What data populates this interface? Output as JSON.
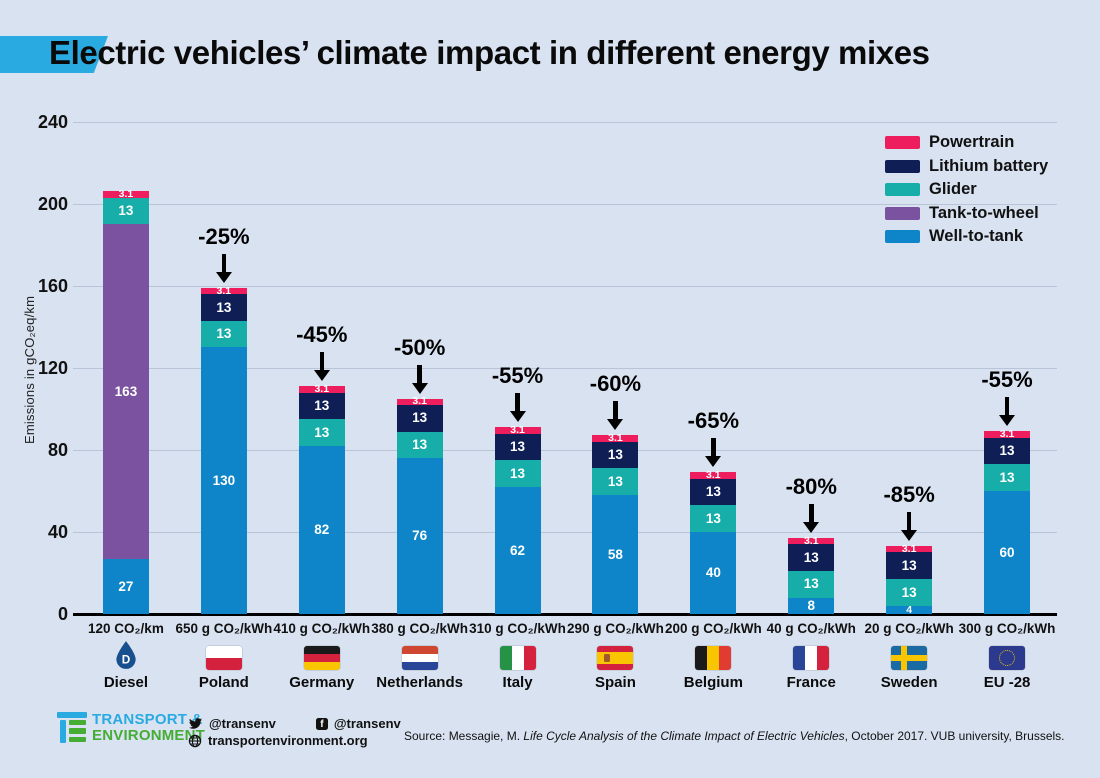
{
  "header": {
    "title": "Electric vehicles’ climate impact in different energy mixes"
  },
  "colors": {
    "background": "#d9e2f1",
    "accent": "#29abe2",
    "gridline": "#b9c4d8",
    "axis": "#000000",
    "te_blue": "#29abe2",
    "te_green": "#45ac34",
    "diesel_drop": "#174f8f"
  },
  "chart_data": {
    "type": "bar",
    "stacked": true,
    "title": "Electric vehicles’ climate impact in different energy mixes",
    "xlabel": "",
    "ylabel": "Emissions in gCO₂eq/km",
    "ylim": [
      0,
      240
    ],
    "yticks": [
      0,
      40,
      80,
      120,
      160,
      200,
      240
    ],
    "grid": true,
    "legend_position": "top-right",
    "legend": [
      {
        "name": "Powertrain",
        "color": "#ee1d5d"
      },
      {
        "name": "Lithium battery",
        "color": "#0f1f56"
      },
      {
        "name": "Glider",
        "color": "#17aea9"
      },
      {
        "name": "Tank-to-wheel",
        "color": "#7b52a0"
      },
      {
        "name": "Well-to-tank",
        "color": "#0d85c8"
      }
    ],
    "bars": [
      {
        "label": "Diesel",
        "x_tick": "120 CO₂/km",
        "flag": "diesel",
        "reduction": null,
        "segments": [
          {
            "name": "Well-to-tank",
            "value": 27
          },
          {
            "name": "Tank-to-wheel",
            "value": 163
          },
          {
            "name": "Glider",
            "value": 13
          },
          {
            "name": "Powertrain",
            "value": 3.1
          }
        ]
      },
      {
        "label": "Poland",
        "x_tick": "650 g CO₂/kWh",
        "flag": "poland",
        "reduction": "-25%",
        "segments": [
          {
            "name": "Well-to-tank",
            "value": 130
          },
          {
            "name": "Glider",
            "value": 13
          },
          {
            "name": "Lithium battery",
            "value": 13
          },
          {
            "name": "Powertrain",
            "value": 3.1
          }
        ]
      },
      {
        "label": "Germany",
        "x_tick": "410 g CO₂/kWh",
        "flag": "germany",
        "reduction": "-45%",
        "segments": [
          {
            "name": "Well-to-tank",
            "value": 82
          },
          {
            "name": "Glider",
            "value": 13
          },
          {
            "name": "Lithium battery",
            "value": 13
          },
          {
            "name": "Powertrain",
            "value": 3.1
          }
        ]
      },
      {
        "label": "Netherlands",
        "x_tick": "380 g CO₂/kWh",
        "flag": "netherlands",
        "reduction": "-50%",
        "segments": [
          {
            "name": "Well-to-tank",
            "value": 76
          },
          {
            "name": "Glider",
            "value": 13
          },
          {
            "name": "Lithium battery",
            "value": 13
          },
          {
            "name": "Powertrain",
            "value": 3.1
          }
        ]
      },
      {
        "label": "Italy",
        "x_tick": "310 g CO₂/kWh",
        "flag": "italy",
        "reduction": "-55%",
        "segments": [
          {
            "name": "Well-to-tank",
            "value": 62
          },
          {
            "name": "Glider",
            "value": 13
          },
          {
            "name": "Lithium battery",
            "value": 13
          },
          {
            "name": "Powertrain",
            "value": 3.1
          }
        ]
      },
      {
        "label": "Spain",
        "x_tick": "290 g CO₂/kWh",
        "flag": "spain",
        "reduction": "-60%",
        "segments": [
          {
            "name": "Well-to-tank",
            "value": 58
          },
          {
            "name": "Glider",
            "value": 13
          },
          {
            "name": "Lithium battery",
            "value": 13
          },
          {
            "name": "Powertrain",
            "value": 3.1
          }
        ]
      },
      {
        "label": "Belgium",
        "x_tick": "200 g CO₂/kWh",
        "flag": "belgium",
        "reduction": "-65%",
        "segments": [
          {
            "name": "Well-to-tank",
            "value": 40
          },
          {
            "name": "Glider",
            "value": 13
          },
          {
            "name": "Lithium battery",
            "value": 13
          },
          {
            "name": "Powertrain",
            "value": 3.1
          }
        ]
      },
      {
        "label": "France",
        "x_tick": "40 g CO₂/kWh",
        "flag": "france",
        "reduction": "-80%",
        "segments": [
          {
            "name": "Well-to-tank",
            "value": 8
          },
          {
            "name": "Glider",
            "value": 13
          },
          {
            "name": "Lithium battery",
            "value": 13
          },
          {
            "name": "Powertrain",
            "value": 3.1
          }
        ]
      },
      {
        "label": "Sweden",
        "x_tick": "20 g CO₂/kWh",
        "flag": "sweden",
        "reduction": "-85%",
        "segments": [
          {
            "name": "Well-to-tank",
            "value": 4
          },
          {
            "name": "Glider",
            "value": 13
          },
          {
            "name": "Lithium battery",
            "value": 13
          },
          {
            "name": "Powertrain",
            "value": 3.1
          }
        ]
      },
      {
        "label": "EU -28",
        "x_tick": "300 g CO₂/kWh",
        "flag": "eu",
        "reduction": "-55%",
        "segments": [
          {
            "name": "Well-to-tank",
            "value": 60
          },
          {
            "name": "Glider",
            "value": 13
          },
          {
            "name": "Lithium battery",
            "value": 13
          },
          {
            "name": "Powertrain",
            "value": 3.1
          }
        ]
      }
    ]
  },
  "footer": {
    "logo": {
      "line1": "TRANSPORT &",
      "line2": "ENVIRONMENT"
    },
    "social": {
      "twitter_handle": "@transenv",
      "facebook_handle": "@transenv",
      "website": "transportenvironment.org"
    },
    "source": {
      "prefix": "Source: Messagie, M. ",
      "italic": "Life Cycle Analysis of the Climate Impact of Electric Vehicles",
      "suffix": ", October 2017. VUB university, Brussels."
    }
  }
}
